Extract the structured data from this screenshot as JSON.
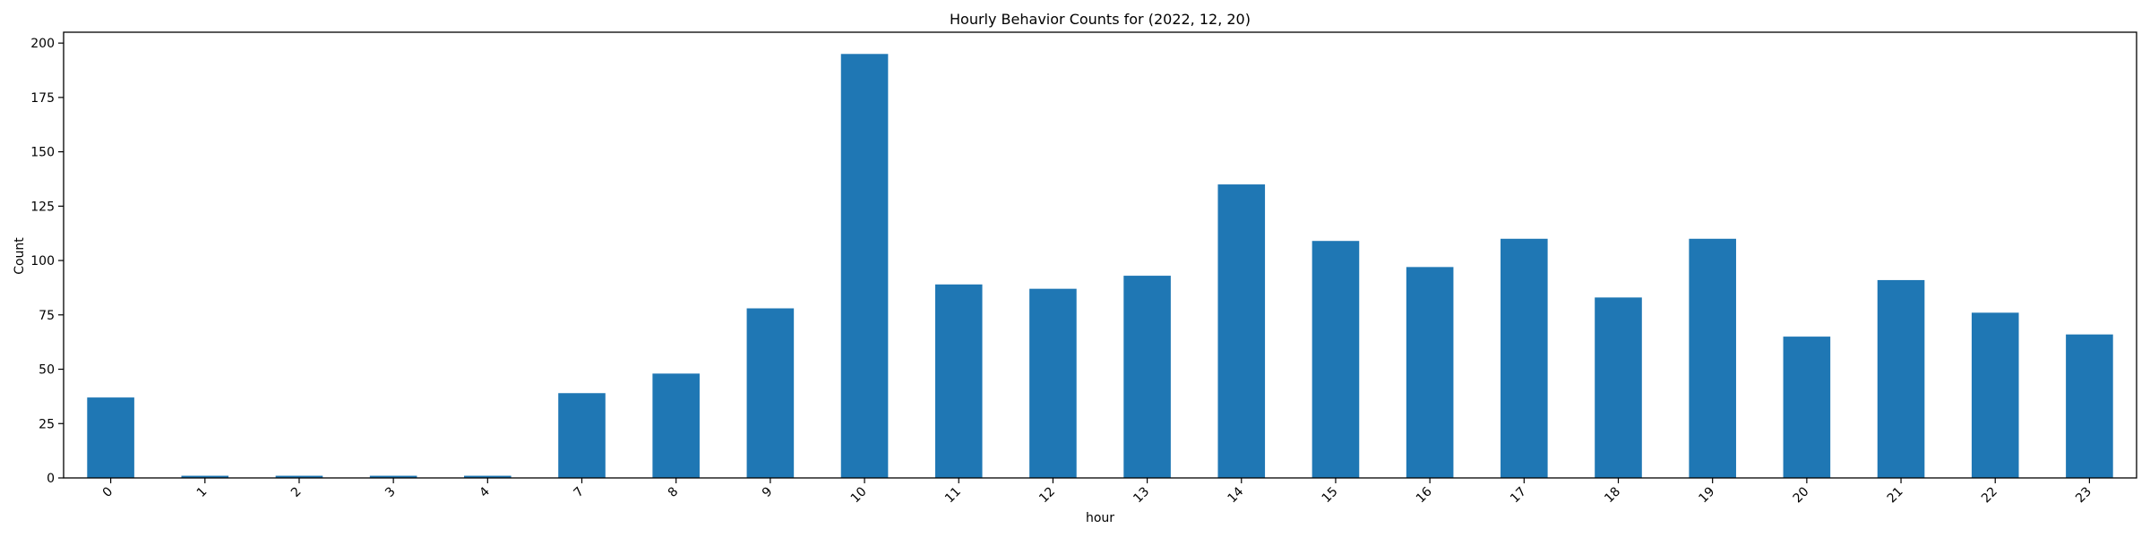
{
  "chart_data": {
    "type": "bar",
    "title": "Hourly Behavior Counts for (2022, 12, 20)",
    "xlabel": "hour",
    "ylabel": "Count",
    "categories": [
      "0",
      "1",
      "2",
      "3",
      "4",
      "7",
      "8",
      "9",
      "10",
      "11",
      "12",
      "13",
      "14",
      "15",
      "16",
      "17",
      "18",
      "19",
      "20",
      "21",
      "22",
      "23"
    ],
    "values": [
      37,
      1,
      1,
      1,
      1,
      39,
      48,
      78,
      195,
      89,
      87,
      93,
      135,
      109,
      97,
      110,
      83,
      110,
      65,
      91,
      76,
      66
    ],
    "ylim": [
      0,
      205
    ],
    "yticks": [
      0,
      25,
      50,
      75,
      100,
      125,
      150,
      175,
      200
    ],
    "grid": false,
    "legend": "none",
    "bar_color": "#1f77b4"
  }
}
